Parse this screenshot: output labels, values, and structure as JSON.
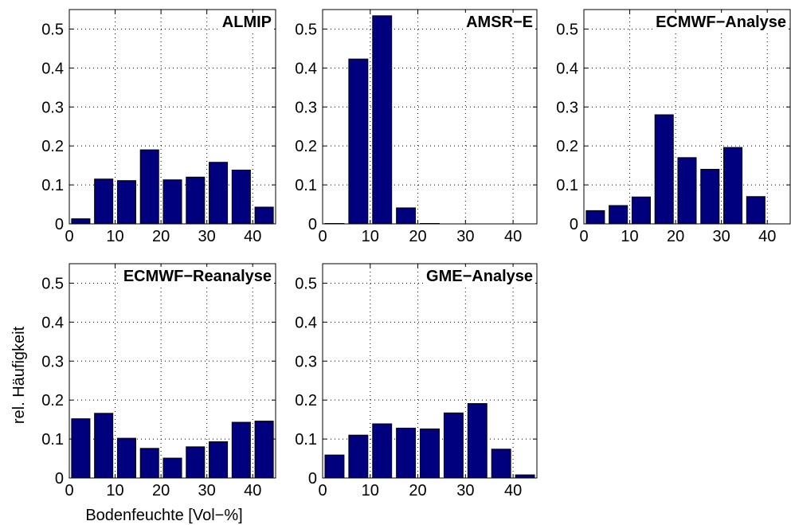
{
  "figure": {
    "ylabel": "rel. Häufigkeit",
    "xlabel": "Bodenfeuchte [Vol−%]",
    "bar_color": "#00007f",
    "grid": "dotted"
  },
  "chart_data": [
    {
      "type": "bar",
      "title": "ALMIP",
      "x": [
        2.5,
        7.5,
        12.5,
        17.5,
        22.5,
        27.5,
        32.5,
        37.5,
        42.5
      ],
      "values": [
        0.013,
        0.115,
        0.111,
        0.19,
        0.113,
        0.12,
        0.158,
        0.138,
        0.043
      ],
      "xlim": [
        0,
        45
      ],
      "ylim": [
        0,
        0.55
      ],
      "xticks": [
        "0",
        "10",
        "20",
        "30",
        "40"
      ],
      "yticks": [
        "0",
        "0.1",
        "0.2",
        "0.3",
        "0.4",
        "0.5"
      ],
      "grid": true
    },
    {
      "type": "bar",
      "title": "AMSR−E",
      "x": [
        2.5,
        7.5,
        12.5,
        17.5,
        22.5,
        27.5,
        32.5,
        37.5,
        42.5
      ],
      "values": [
        0.001,
        0.423,
        0.534,
        0.041,
        0.001,
        0.0,
        0.0,
        0.0,
        0.0
      ],
      "xlim": [
        0,
        45
      ],
      "ylim": [
        0,
        0.55
      ],
      "xticks": [
        "0",
        "10",
        "20",
        "30",
        "40"
      ],
      "yticks": [
        "0",
        "0.1",
        "0.2",
        "0.3",
        "0.4",
        "0.5"
      ],
      "grid": true
    },
    {
      "type": "bar",
      "title": "ECMWF−Analyse",
      "x": [
        2.5,
        7.5,
        12.5,
        17.5,
        22.5,
        27.5,
        32.5,
        37.5,
        42.5
      ],
      "values": [
        0.034,
        0.047,
        0.069,
        0.28,
        0.17,
        0.14,
        0.196,
        0.07,
        0.0
      ],
      "xlim": [
        0,
        45
      ],
      "ylim": [
        0,
        0.55
      ],
      "xticks": [
        "0",
        "10",
        "20",
        "30",
        "40"
      ],
      "yticks": [
        "0",
        "0.1",
        "0.2",
        "0.3",
        "0.4",
        "0.5"
      ],
      "grid": true
    },
    {
      "type": "bar",
      "title": "ECMWF−Reanalyse",
      "x": [
        2.5,
        7.5,
        12.5,
        17.5,
        22.5,
        27.5,
        32.5,
        37.5,
        42.5
      ],
      "values": [
        0.152,
        0.166,
        0.102,
        0.076,
        0.051,
        0.08,
        0.093,
        0.143,
        0.146
      ],
      "xlim": [
        0,
        45
      ],
      "ylim": [
        0,
        0.55
      ],
      "xticks": [
        "0",
        "10",
        "20",
        "30",
        "40"
      ],
      "yticks": [
        "0",
        "0.1",
        "0.2",
        "0.3",
        "0.4",
        "0.5"
      ],
      "grid": true
    },
    {
      "type": "bar",
      "title": "GME−Analyse",
      "x": [
        2.5,
        7.5,
        12.5,
        17.5,
        22.5,
        27.5,
        32.5,
        37.5,
        42.5
      ],
      "values": [
        0.059,
        0.11,
        0.139,
        0.128,
        0.126,
        0.167,
        0.191,
        0.074,
        0.008
      ],
      "xlim": [
        0,
        45
      ],
      "ylim": [
        0,
        0.55
      ],
      "xticks": [
        "0",
        "10",
        "20",
        "30",
        "40"
      ],
      "yticks": [
        "0",
        "0.1",
        "0.2",
        "0.3",
        "0.4",
        "0.5"
      ],
      "grid": true
    }
  ]
}
